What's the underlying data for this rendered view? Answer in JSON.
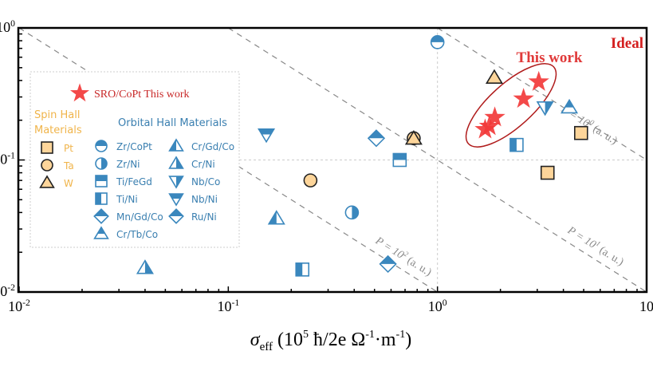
{
  "chart_data": {
    "type": "scatter",
    "xscale": "log",
    "yscale": "log",
    "xlim": [
      0.01,
      10
    ],
    "ylim": [
      0.01,
      1
    ],
    "xlabel": {
      "symbol": "σ",
      "sub": "eff",
      "unit_open": " (10",
      "unit_exp": "5",
      "unit_mid": " ħ/2e Ω",
      "unit_exp2": "-1",
      "unit_mid2": "·m",
      "unit_exp3": "-1",
      "unit_close": ")"
    },
    "xticks": [
      {
        "v": 0.01,
        "base": "10",
        "exp": "-2"
      },
      {
        "v": 0.1,
        "base": "10",
        "exp": "-1"
      },
      {
        "v": 1,
        "base": "10",
        "exp": "0"
      },
      {
        "v": 10,
        "base": "10",
        "exp": ""
      }
    ],
    "yticks": [
      {
        "v": 1,
        "base": "10",
        "exp": "0"
      },
      {
        "v": 0.1,
        "base": "10",
        "exp": "-1"
      },
      {
        "v": 0.01,
        "base": "10",
        "exp": "-2"
      }
    ],
    "grid": "dotted at 10^0 (x) and 10^-1 (y)",
    "annotations": {
      "ideal": "Ideal",
      "this_work": "This work"
    },
    "iso_lines": [
      {
        "k": 1,
        "label": "P = 10",
        "exp": "0",
        "suffix": " (a. u.)"
      },
      {
        "k": 0.1,
        "label": "P = 10",
        "exp": "1",
        "suffix": " (a. u.)"
      },
      {
        "k": 0.01,
        "label": "P = 10",
        "exp": "2",
        "suffix": " (a. u.)"
      }
    ],
    "legend": {
      "placement": "upper-left",
      "this_work": "SRO/CoPt This work",
      "spin_title": [
        "Spin Hall",
        "Materials"
      ],
      "orbital_title": "Orbital Hall Materials",
      "spin": [
        {
          "name": "Pt",
          "shape": "square"
        },
        {
          "name": "Ta",
          "shape": "circle"
        },
        {
          "name": "W",
          "shape": "triangle-up"
        }
      ],
      "orbital_col1": [
        {
          "name": "Zr/CoPt",
          "shape": "circle",
          "half": "top"
        },
        {
          "name": "Zr/Ni",
          "shape": "circle",
          "half": "right"
        },
        {
          "name": "Ti/FeGd",
          "shape": "square",
          "half": "top"
        },
        {
          "name": "Ti/Ni",
          "shape": "square",
          "half": "left"
        },
        {
          "name": "Mn/Gd/Co",
          "shape": "diamond",
          "half": "top"
        },
        {
          "name": "Cr/Tb/Co",
          "shape": "triangle-up",
          "half": "top"
        }
      ],
      "orbital_col2": [
        {
          "name": "Cr/Gd/Co",
          "shape": "triangle-up",
          "half": "left"
        },
        {
          "name": "Cr/Ni",
          "shape": "triangle-up",
          "half": "right"
        },
        {
          "name": "Nb/Co",
          "shape": "triangle-down",
          "half": "right"
        },
        {
          "name": "Nb/Ni",
          "shape": "triangle-down",
          "half": "top"
        },
        {
          "name": "Ru/Ni",
          "shape": "diamond",
          "half": "top"
        }
      ]
    },
    "colors": {
      "orbital": "#3a87bd",
      "spin_fill": "#fdd59a",
      "spin_edge": "#222222",
      "star": "#f23a3a",
      "ellipse": "#b01c1c",
      "spin_text": "#f0b44a",
      "annot": "#d42020",
      "iso": "#888888"
    },
    "series": [
      {
        "name": "SRO/CoPt This work",
        "marker": "star",
        "points": [
          [
            3.05,
            0.39
          ],
          [
            2.58,
            0.29
          ],
          [
            1.88,
            0.21
          ],
          [
            1.77,
            0.18
          ],
          [
            1.69,
            0.17
          ]
        ]
      },
      {
        "name": "Pt",
        "marker": "square",
        "points": [
          [
            4.86,
            0.16
          ],
          [
            3.36,
            0.08
          ]
        ]
      },
      {
        "name": "Ta",
        "marker": "circle",
        "points": [
          [
            0.77,
            0.146
          ],
          [
            0.247,
            0.07
          ]
        ]
      },
      {
        "name": "W",
        "marker": "triangle-up",
        "points": [
          [
            1.87,
            0.42
          ],
          [
            0.77,
            0.145
          ]
        ]
      },
      {
        "name": "Zr/CoPt",
        "marker": "circle",
        "half": "top",
        "points": [
          [
            1.0,
            0.78
          ]
        ]
      },
      {
        "name": "Zr/Ni",
        "marker": "circle",
        "half": "right",
        "points": [
          [
            0.39,
            0.04
          ]
        ]
      },
      {
        "name": "Ti/FeGd",
        "marker": "square",
        "half": "top",
        "points": [
          [
            0.66,
            0.1
          ]
        ]
      },
      {
        "name": "Ti/Ni",
        "marker": "square",
        "half": "left",
        "points": [
          [
            2.39,
            0.13
          ],
          [
            0.226,
            0.0148
          ]
        ]
      },
      {
        "name": "Mn/Gd/Co",
        "marker": "diamond",
        "half": "top",
        "points": [
          [
            0.51,
            0.146
          ]
        ]
      },
      {
        "name": "Cr/Tb/Co",
        "marker": "triangle-up",
        "half": "top",
        "points": [
          [
            4.27,
            0.25
          ]
        ]
      },
      {
        "name": "Cr/Gd/Co",
        "marker": "triangle-up",
        "half": "left",
        "points": [
          [
            0.17,
            0.036
          ]
        ]
      },
      {
        "name": "Cr/Ni",
        "marker": "triangle-up",
        "half": "right",
        "points": [
          [
            0.04,
            0.0152
          ]
        ]
      },
      {
        "name": "Nb/Co",
        "marker": "triangle-down",
        "half": "right",
        "points": [
          [
            3.27,
            0.25
          ]
        ]
      },
      {
        "name": "Nb/Ni",
        "marker": "triangle-down",
        "half": "top",
        "points": [
          [
            0.152,
            0.156
          ]
        ]
      },
      {
        "name": "Ru/Ni",
        "marker": "diamond",
        "half": "top",
        "points": [
          [
            0.58,
            0.0163
          ]
        ]
      }
    ]
  }
}
